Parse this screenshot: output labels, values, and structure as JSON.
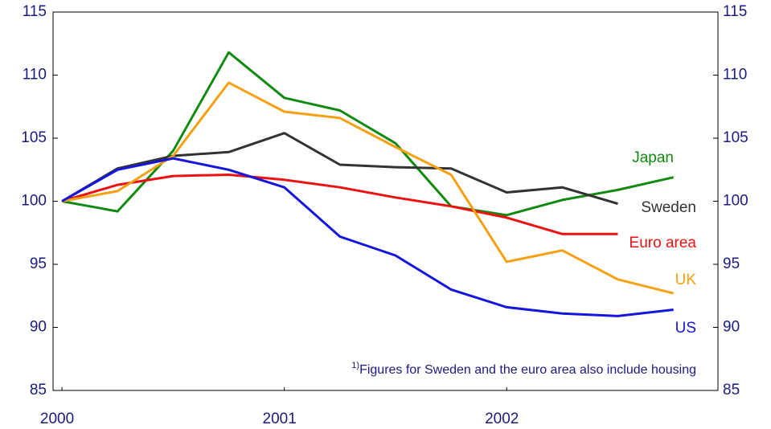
{
  "chart_data": {
    "type": "line",
    "x": [
      2000,
      2000.25,
      2000.5,
      2000.75,
      2001,
      2001.25,
      2001.5,
      2001.75,
      2002,
      2002.25,
      2002.5,
      2002.75
    ],
    "xlim": [
      1999.96,
      2002.95
    ],
    "xticks": [
      2000,
      2001,
      2002
    ],
    "ylim": [
      85,
      115
    ],
    "yticks": [
      85,
      90,
      95,
      100,
      105,
      110,
      115
    ],
    "y2lim": [
      85,
      115
    ],
    "y2ticks": [
      85,
      90,
      95,
      100,
      105,
      110,
      115
    ],
    "series": [
      {
        "name": "Japan",
        "color": "#118a11",
        "values": [
          100,
          99.2,
          104.0,
          111.8,
          108.2,
          107.2,
          104.6,
          99.6,
          98.9,
          100.1,
          100.9,
          101.9
        ]
      },
      {
        "name": "Sweden",
        "color": "#333333",
        "values": [
          100,
          102.6,
          103.6,
          103.9,
          105.4,
          102.9,
          102.7,
          102.6,
          100.7,
          101.1,
          99.8,
          null
        ]
      },
      {
        "name": "Euro area",
        "color": "#ee1111",
        "values": [
          100,
          101.3,
          102.0,
          102.1,
          101.7,
          101.1,
          100.3,
          99.6,
          98.7,
          97.4,
          97.4,
          null
        ]
      },
      {
        "name": "UK",
        "color": "#f5a010",
        "values": [
          100,
          100.8,
          103.6,
          109.4,
          107.1,
          106.6,
          104.3,
          102.1,
          95.2,
          96.1,
          93.8,
          92.7
        ]
      },
      {
        "name": "US",
        "color": "#1515e0",
        "values": [
          100,
          102.5,
          103.4,
          102.5,
          101.1,
          97.2,
          95.7,
          93.0,
          91.6,
          91.1,
          90.9,
          91.4
        ]
      }
    ],
    "note": {
      "marker": "1)",
      "text": "Figures for Sweden and the euro area also include housing"
    }
  }
}
